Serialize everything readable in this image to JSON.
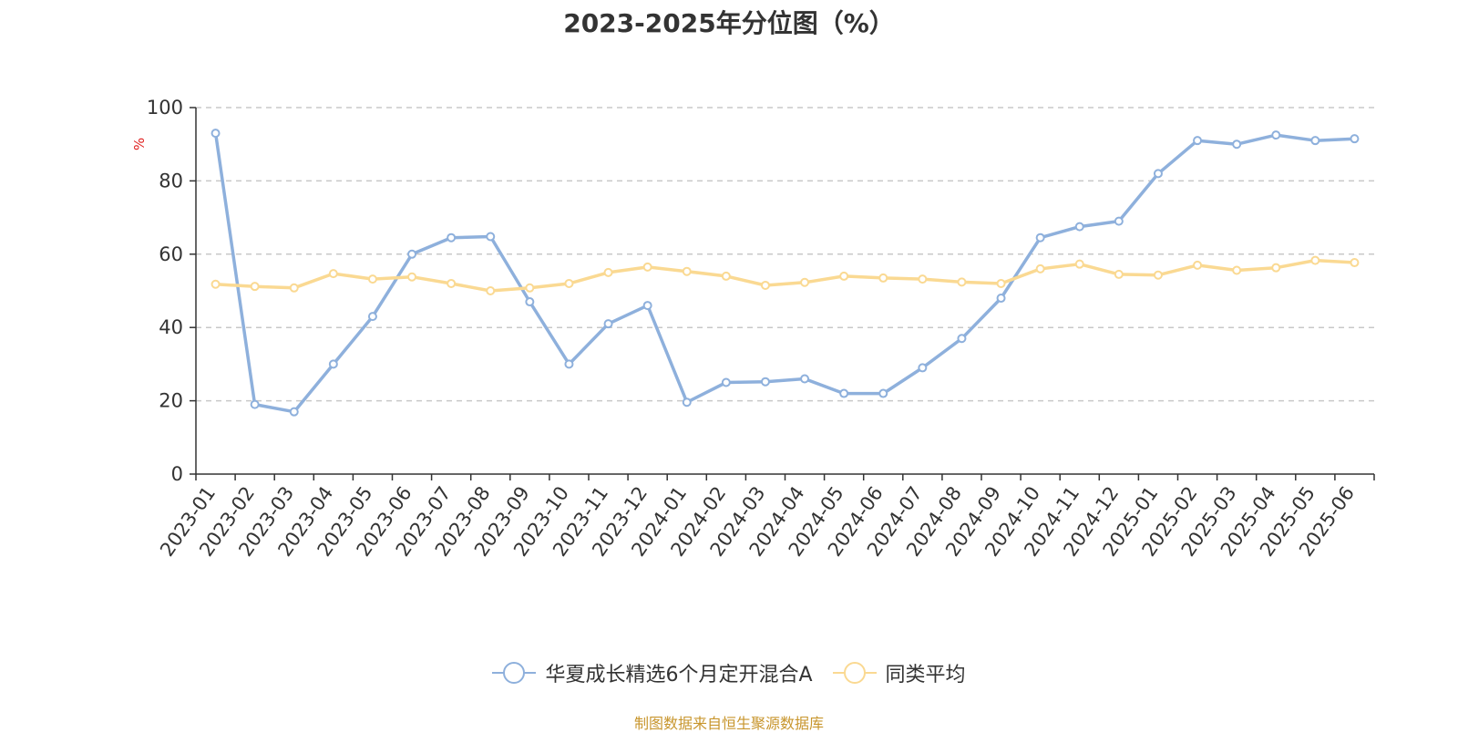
{
  "chart_data": {
    "type": "line",
    "title": "2023-2025年分位图（%）",
    "ylabel": "%",
    "xlabel": "",
    "ylim": [
      0,
      100
    ],
    "yticks": [
      0,
      20,
      40,
      60,
      80,
      100
    ],
    "grid": true,
    "legend_position": "bottom",
    "categories": [
      "2023-01",
      "2023-02",
      "2023-03",
      "2023-04",
      "2023-05",
      "2023-06",
      "2023-07",
      "2023-08",
      "2023-09",
      "2023-10",
      "2023-11",
      "2023-12",
      "2024-01",
      "2024-02",
      "2024-03",
      "2024-04",
      "2024-05",
      "2024-06",
      "2024-07",
      "2024-08",
      "2024-09",
      "2024-10",
      "2024-11",
      "2024-12",
      "2025-01",
      "2025-02",
      "2025-03",
      "2025-04",
      "2025-05",
      "2025-06"
    ],
    "series": [
      {
        "name": "华夏成长精选6个月定开混合A",
        "color": "#8eb0dc",
        "values": [
          93,
          19,
          17,
          30,
          43,
          60,
          64.5,
          64.8,
          47,
          30,
          41,
          46,
          19.6,
          25,
          25.2,
          26,
          22,
          22,
          29,
          37,
          48,
          64.5,
          67.5,
          69,
          82,
          91,
          90,
          92.5,
          91,
          91.5
        ]
      },
      {
        "name": "同类平均",
        "color": "#fad992",
        "values": [
          51.8,
          51.2,
          50.8,
          54.7,
          53.2,
          53.8,
          52,
          50,
          50.8,
          52,
          55,
          56.5,
          55.3,
          54,
          51.5,
          52.3,
          54,
          53.5,
          53.2,
          52.4,
          52,
          56,
          57.3,
          54.5,
          54.3,
          57,
          55.6,
          56.3,
          58.3,
          57.7
        ]
      }
    ]
  },
  "source_note": "制图数据来自恒生聚源数据库"
}
